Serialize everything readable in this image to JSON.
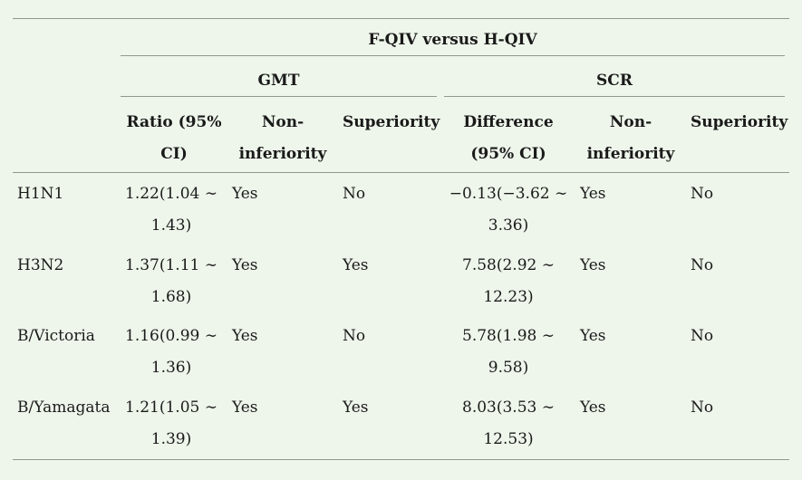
{
  "table": {
    "group_header": "F-QIV versus H-QIV",
    "gmt_header": "GMT",
    "scr_header": "SCR",
    "columns": {
      "gmt_ratio": "Ratio (95% CI)",
      "gmt_noninferiority": "Non-inferiority",
      "gmt_superiority": "Superiority",
      "scr_difference": "Difference (95% CI)",
      "scr_noninferiority": "Non-inferiority",
      "scr_superiority": "Superiority"
    },
    "rows": [
      {
        "strain": "H1N1",
        "ratio": "1.22(1.04 ∼ 1.43)",
        "gmt_noninf": "Yes",
        "gmt_sup": "No",
        "difference": "−0.13(−3.62 ∼ 3.36)",
        "scr_noninf": "Yes",
        "scr_sup": "No"
      },
      {
        "strain": "H3N2",
        "ratio": "1.37(1.11 ∼ 1.68)",
        "gmt_noninf": "Yes",
        "gmt_sup": "Yes",
        "difference": "7.58(2.92 ∼ 12.23)",
        "scr_noninf": "Yes",
        "scr_sup": "No"
      },
      {
        "strain": "B/Victoria",
        "ratio": "1.16(0.99 ∼ 1.36)",
        "gmt_noninf": "Yes",
        "gmt_sup": "No",
        "difference": "5.78(1.98 ∼ 9.58)",
        "scr_noninf": "Yes",
        "scr_sup": "No"
      },
      {
        "strain": "B/Yamagata",
        "ratio": "1.21(1.05 ∼ 1.39)",
        "gmt_noninf": "Yes",
        "gmt_sup": "Yes",
        "difference": "8.03(3.53 ∼ 12.53)",
        "scr_noninf": "Yes",
        "scr_sup": "No"
      }
    ]
  }
}
